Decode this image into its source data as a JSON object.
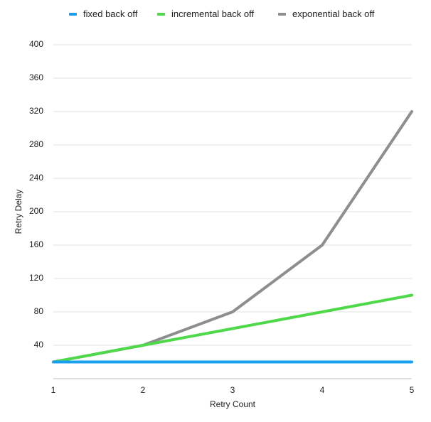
{
  "chart_data": {
    "type": "line",
    "title": "",
    "xlabel": "Retry Count",
    "ylabel": "Retry Delay",
    "x": [
      1,
      2,
      3,
      4,
      5
    ],
    "xlim": [
      1,
      5
    ],
    "ylim": [
      0,
      400
    ],
    "yticks": [
      40,
      80,
      120,
      160,
      200,
      240,
      280,
      320,
      360,
      400
    ],
    "grid": true,
    "legend_position": "top",
    "series": [
      {
        "name": "fixed back off",
        "color": "#1a9ff0",
        "values": [
          20,
          20,
          20,
          20,
          20
        ]
      },
      {
        "name": "incremental back off",
        "color": "#4fd84a",
        "values": [
          20,
          40,
          60,
          80,
          100
        ]
      },
      {
        "name": "exponential back off",
        "color": "#8e8e8e",
        "values": [
          20,
          40,
          80,
          160,
          320
        ]
      }
    ]
  }
}
